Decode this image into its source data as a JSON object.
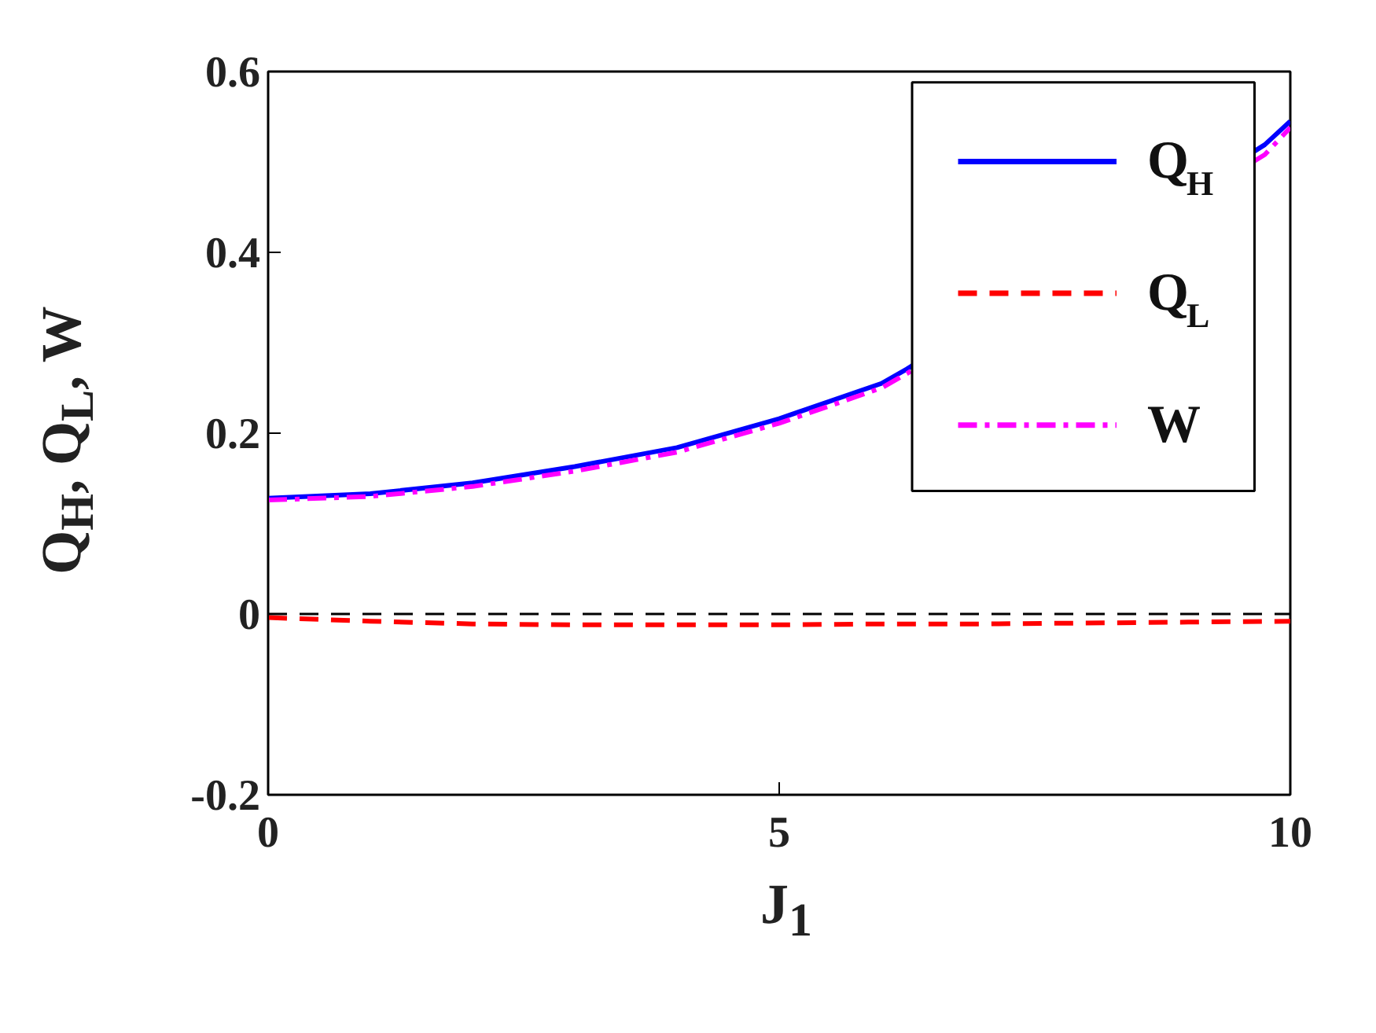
{
  "chart_data": {
    "type": "line",
    "xlabel": "J$_{1}$",
    "ylabel": "Q$_{H}$, Q$_{L}$, W",
    "xlim": [
      0,
      10
    ],
    "ylim": [
      -0.2,
      0.6
    ],
    "xticks": [
      0,
      5,
      10
    ],
    "yticks": [
      -0.2,
      0,
      0.2,
      0.4,
      0.6
    ],
    "grid": false,
    "legend": "top right",
    "marker": "none",
    "series": [
      {
        "name": "Q$_{H}$",
        "color": "#0000ff",
        "line_style": "solid",
        "x": [
          0,
          1,
          2,
          3,
          4,
          5,
          6,
          6.25,
          9.75,
          10
        ],
        "values": [
          0.128,
          0.133,
          0.145,
          0.163,
          0.184,
          0.216,
          0.255,
          0.271,
          0.519,
          0.545
        ]
      },
      {
        "name": "Q$_{L}$",
        "color": "#ff0000",
        "line_style": "dashed",
        "x": [
          0,
          1,
          2,
          3,
          4,
          5,
          6,
          7,
          8,
          9,
          10
        ],
        "values": [
          -0.004,
          -0.008,
          -0.011,
          -0.012,
          -0.012,
          -0.012,
          -0.011,
          -0.011,
          -0.01,
          -0.009,
          -0.008
        ]
      },
      {
        "name": "W",
        "color": "#ff00ff",
        "line_style": "dashdot",
        "x": [
          0,
          1,
          2,
          3,
          4,
          5,
          6,
          6.25,
          9.75,
          10
        ],
        "values": [
          0.126,
          0.13,
          0.141,
          0.158,
          0.179,
          0.211,
          0.25,
          0.266,
          0.508,
          0.538
        ]
      }
    ],
    "ref_lines": [
      {
        "axis": "y",
        "value": 0,
        "color": "#000000",
        "line_style": "dashed"
      }
    ]
  }
}
